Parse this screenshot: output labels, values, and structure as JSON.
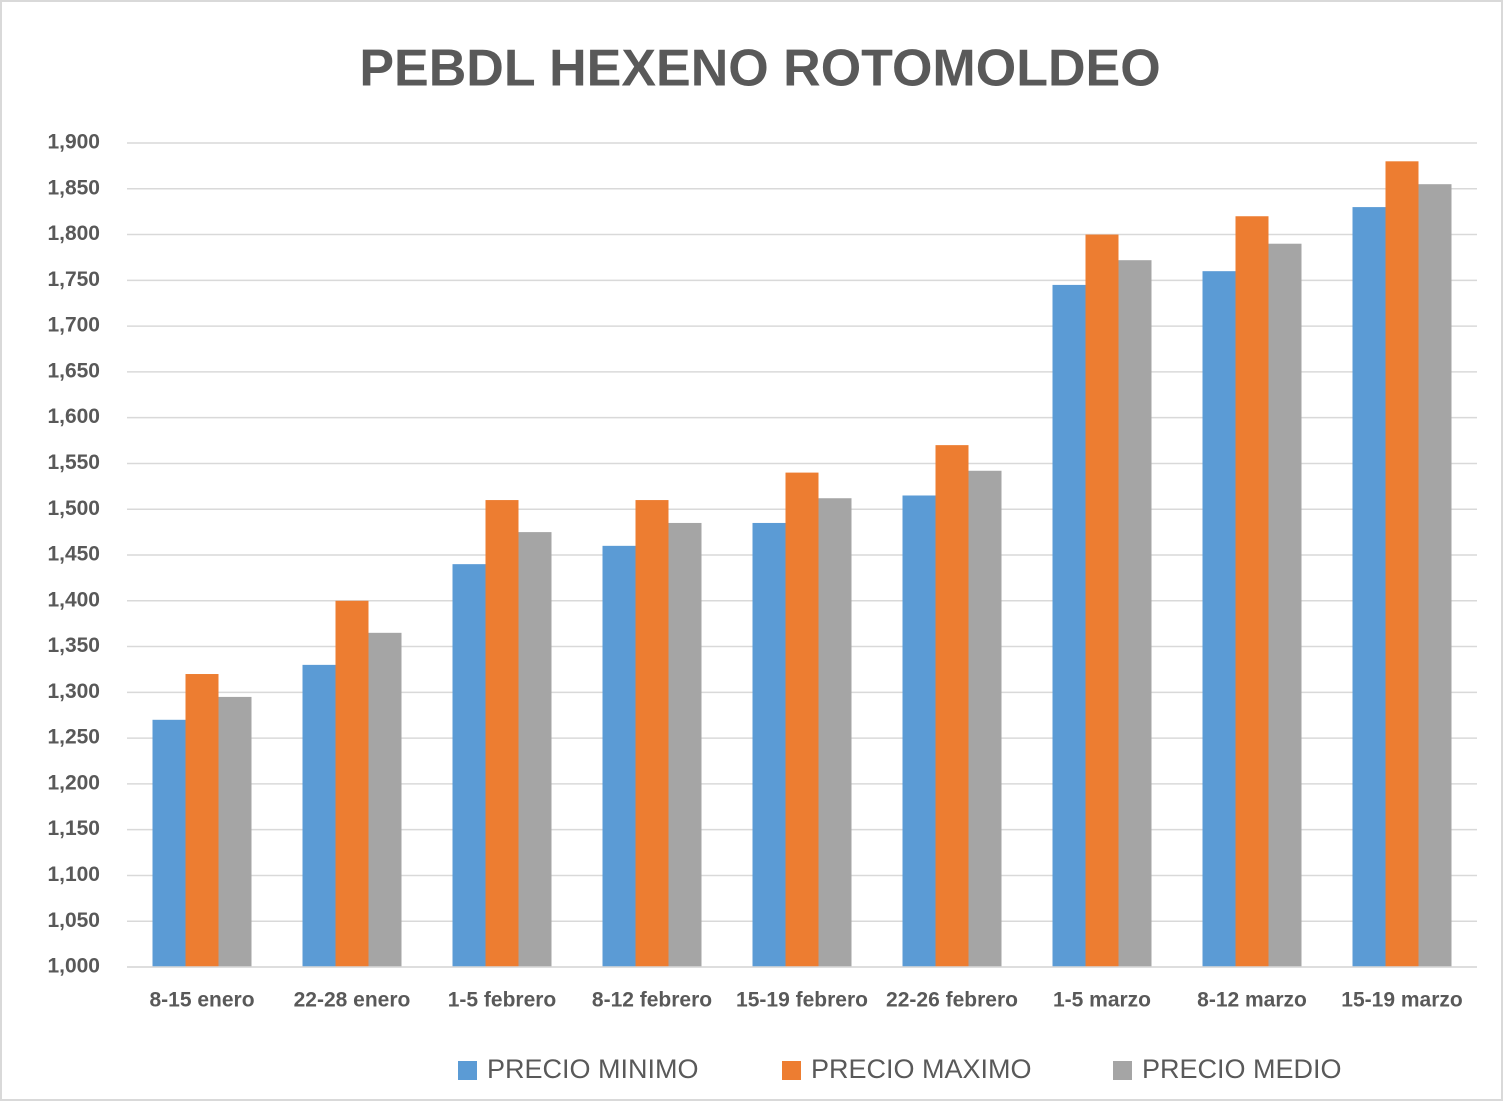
{
  "chart_data": {
    "type": "bar",
    "title": "PEBDL HEXENO ROTOMOLDEO",
    "categories": [
      "8-15 enero",
      "22-28 enero",
      "1-5 febrero",
      "8-12 febrero",
      "15-19 febrero",
      "22-26 febrero",
      "1-5 marzo",
      "8-12 marzo",
      "15-19 marzo"
    ],
    "series": [
      {
        "name": "PRECIO MINIMO",
        "color": "#5b9bd5",
        "values": [
          1270,
          1330,
          1440,
          1460,
          1485,
          1515,
          1745,
          1760,
          1830
        ]
      },
      {
        "name": "PRECIO MAXIMO",
        "color": "#ed7d31",
        "values": [
          1320,
          1400,
          1510,
          1510,
          1540,
          1570,
          1800,
          1820,
          1880
        ]
      },
      {
        "name": "PRECIO MEDIO",
        "color": "#a5a5a5",
        "values": [
          1295,
          1365,
          1475,
          1485,
          1512,
          1542,
          1772,
          1790,
          1855
        ]
      }
    ],
    "ylim": [
      1000,
      1900
    ],
    "yticks": [
      {
        "value": 1000,
        "label": "1,000"
      },
      {
        "value": 1050,
        "label": "1,050"
      },
      {
        "value": 1100,
        "label": "1,100"
      },
      {
        "value": 1150,
        "label": "1,150"
      },
      {
        "value": 1200,
        "label": "1,200"
      },
      {
        "value": 1250,
        "label": "1,250"
      },
      {
        "value": 1300,
        "label": "1,300"
      },
      {
        "value": 1350,
        "label": "1,350"
      },
      {
        "value": 1400,
        "label": "1,400"
      },
      {
        "value": 1450,
        "label": "1,450"
      },
      {
        "value": 1500,
        "label": "1,500"
      },
      {
        "value": 1550,
        "label": "1,550"
      },
      {
        "value": 1600,
        "label": "1,600"
      },
      {
        "value": 1650,
        "label": "1,650"
      },
      {
        "value": 1700,
        "label": "1,700"
      },
      {
        "value": 1750,
        "label": "1,750"
      },
      {
        "value": 1800,
        "label": "1,800"
      },
      {
        "value": 1850,
        "label": "1,850"
      },
      {
        "value": 1900,
        "label": "1,900"
      }
    ],
    "grid": true,
    "legend": "bottom"
  }
}
